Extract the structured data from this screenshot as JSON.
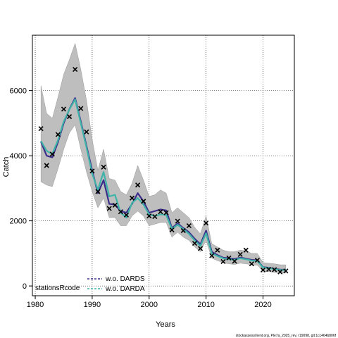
{
  "chart_data": {
    "type": "line",
    "xlabel": "Years",
    "ylabel": "Catch",
    "xlim": [
      1979.5,
      2025.5
    ],
    "ylim": [
      -300,
      7700
    ],
    "x_ticks": [
      1980,
      1990,
      2000,
      2010,
      2020
    ],
    "y_ticks": [
      0,
      2000,
      4000,
      6000
    ],
    "grid": "dotted",
    "legend": {
      "placement": "bottom-left",
      "title": "stationsRcode",
      "entries": [
        "w.o. DARDS",
        "w.o. DARDA"
      ]
    },
    "colors": {
      "band": "#bebebe",
      "band_edge": "#888888",
      "dards": "#3b2d8a",
      "darda": "#3fb3a8",
      "observed": "#000000"
    },
    "years": [
      1981,
      1982,
      1983,
      1984,
      1985,
      1986,
      1987,
      1988,
      1989,
      1990,
      1991,
      1992,
      1993,
      1994,
      1995,
      1996,
      1997,
      1998,
      1999,
      2000,
      2001,
      2002,
      2003,
      2004,
      2005,
      2006,
      2007,
      2008,
      2009,
      2010,
      2011,
      2012,
      2013,
      2014,
      2015,
      2016,
      2017,
      2018,
      2019,
      2020,
      2021,
      2022,
      2023,
      2024
    ],
    "observed": [
      4830,
      3700,
      4050,
      4650,
      5430,
      5200,
      6650,
      5450,
      4730,
      3530,
      2900,
      3650,
      2380,
      2480,
      2280,
      2180,
      2700,
      3100,
      2600,
      2150,
      2130,
      2280,
      2250,
      1720,
      1990,
      1700,
      1850,
      1310,
      1150,
      1930,
      930,
      1100,
      750,
      860,
      760,
      970,
      1100,
      680,
      790,
      490,
      510,
      500,
      430,
      460
    ],
    "series": [
      {
        "name": "w.o. DARDS",
        "values": [
          4430,
          4000,
          3950,
          4420,
          5000,
          5430,
          5770,
          5050,
          4300,
          3550,
          2850,
          3250,
          2520,
          2500,
          2300,
          2250,
          2520,
          2850,
          2600,
          2250,
          2300,
          2350,
          2320,
          1780,
          1920,
          1780,
          1650,
          1450,
          1280,
          1700,
          1050,
          950,
          870,
          850,
          830,
          870,
          840,
          800,
          790,
          580,
          560,
          530,
          500,
          500
        ]
      },
      {
        "name": "w.o. DARDA",
        "values": [
          4450,
          4150,
          4050,
          4480,
          5050,
          5420,
          5730,
          5000,
          4250,
          3450,
          2950,
          3500,
          2750,
          2800,
          2250,
          2100,
          2550,
          2700,
          2500,
          2200,
          2150,
          2200,
          2180,
          1750,
          1880,
          1750,
          1600,
          1400,
          1230,
          1620,
          1000,
          920,
          850,
          820,
          800,
          850,
          820,
          780,
          770,
          570,
          550,
          520,
          490,
          490
        ]
      }
    ],
    "band_lower": [
      3200,
      3100,
      3050,
      3600,
      4200,
      4700,
      4950,
      4200,
      3500,
      2900,
      2400,
      2700,
      2100,
      2100,
      1850,
      1850,
      2150,
      2300,
      2150,
      1850,
      1900,
      1950,
      1950,
      1500,
      1650,
      1500,
      1400,
      1200,
      1050,
      1400,
      850,
      780,
      710,
      680,
      660,
      700,
      680,
      650,
      640,
      460,
      440,
      420,
      400,
      400
    ],
    "band_upper": [
      6150,
      5300,
      5150,
      5800,
      6500,
      6950,
      7450,
      6650,
      5700,
      4500,
      3550,
      4200,
      3300,
      3250,
      2900,
      2800,
      3150,
      3700,
      3250,
      2750,
      2800,
      2950,
      2850,
      2250,
      2400,
      2250,
      2100,
      1800,
      1600,
      2150,
      1300,
      1200,
      1100,
      1050,
      1050,
      1100,
      1080,
      1000,
      1000,
      720,
      700,
      680,
      650,
      650
    ]
  },
  "footnote": "stockassessment.org, Ple7a_2025_rev, r19098, git:1cc464b806f"
}
